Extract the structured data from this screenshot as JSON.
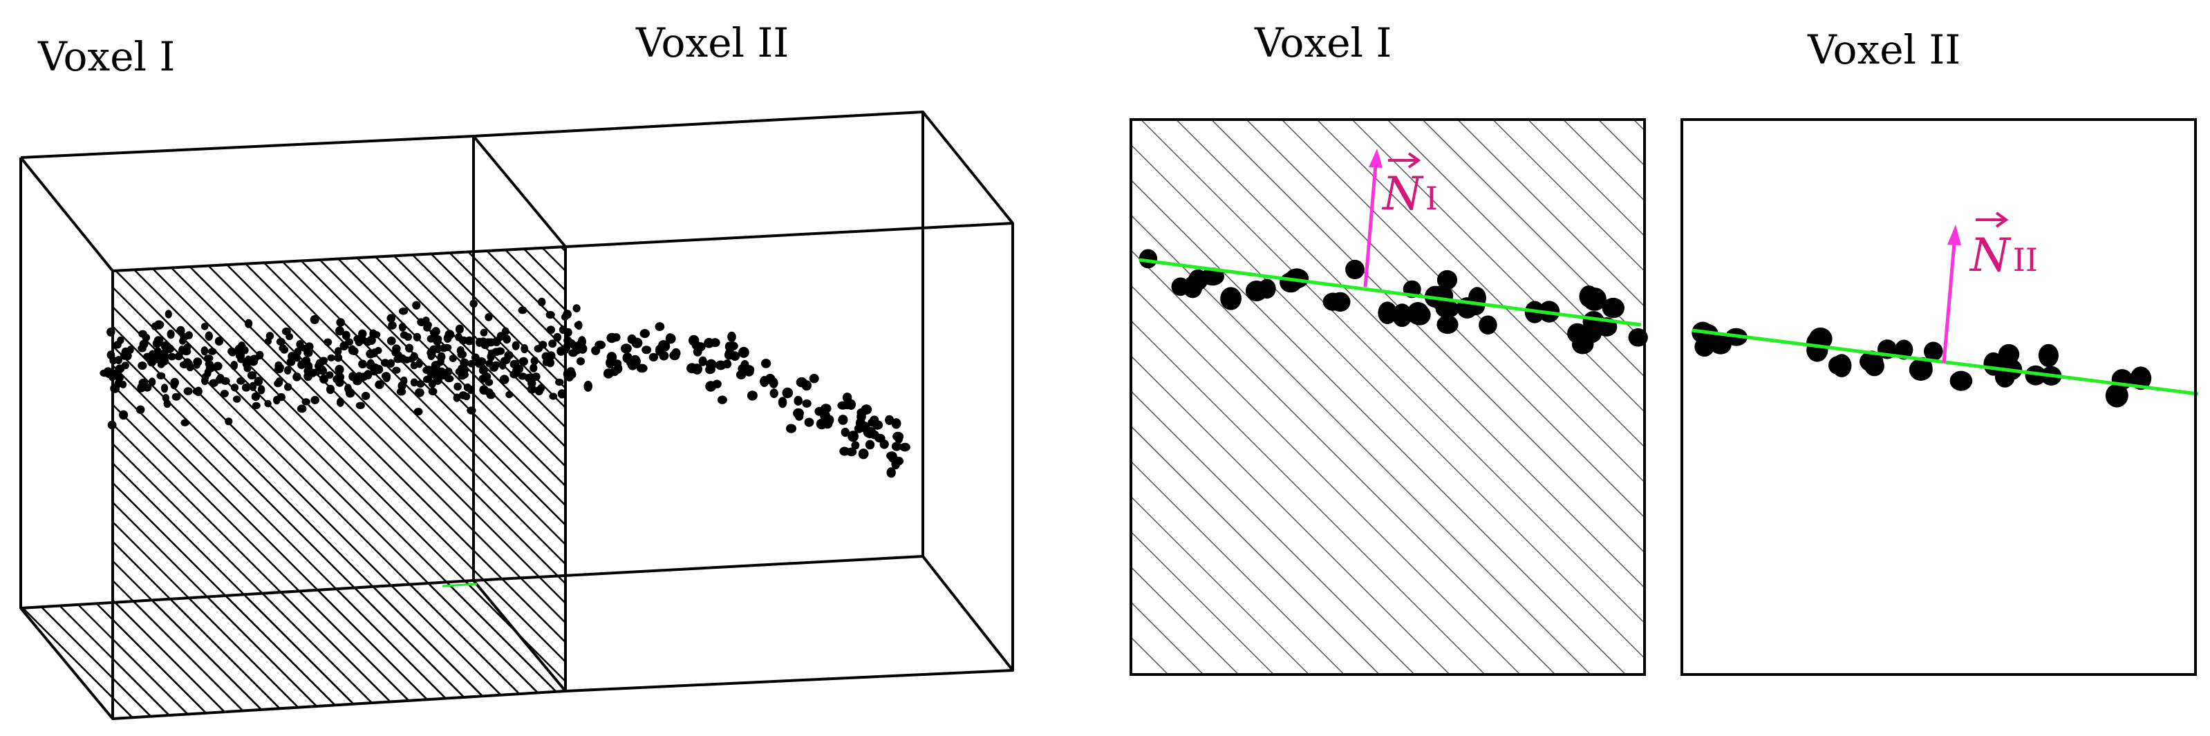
{
  "colors": {
    "edge": "#000000",
    "points": "#000000",
    "hatch": "#000000",
    "hatch_light": "#555555",
    "fit_line": "#22ee22",
    "normal_vector": "#ff33dd",
    "normal_label": "#d4187a"
  },
  "left_panel": {
    "voxel1_label": "Voxel I",
    "voxel2_label": "Voxel II"
  },
  "right_panel": {
    "voxel1_label": "Voxel I",
    "voxel2_label": "Voxel II",
    "normal1": {
      "symbol": "N",
      "subscript": "I"
    },
    "normal2": {
      "symbol": "N",
      "subscript": "II"
    }
  }
}
